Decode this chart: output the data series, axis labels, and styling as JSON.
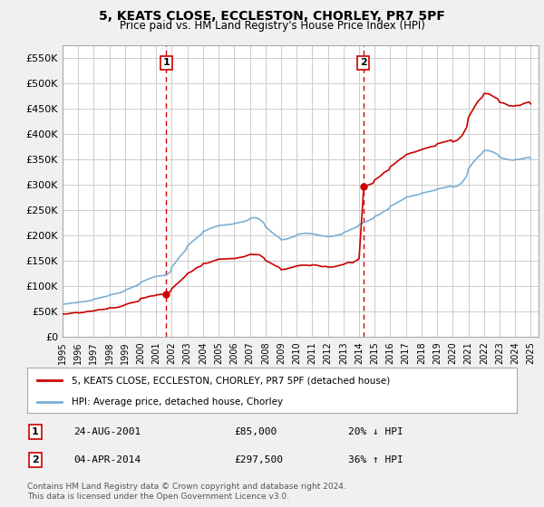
{
  "title": "5, KEATS CLOSE, ECCLESTON, CHORLEY, PR7 5PF",
  "subtitle": "Price paid vs. HM Land Registry's House Price Index (HPI)",
  "ylim": [
    0,
    575000
  ],
  "yticks": [
    0,
    50000,
    100000,
    150000,
    200000,
    250000,
    300000,
    350000,
    400000,
    450000,
    500000,
    550000
  ],
  "ytick_labels": [
    "£0",
    "£50K",
    "£100K",
    "£150K",
    "£200K",
    "£250K",
    "£300K",
    "£350K",
    "£400K",
    "£450K",
    "£500K",
    "£550K"
  ],
  "background_color": "#f0f0f0",
  "plot_bg_color": "#ffffff",
  "grid_color": "#cccccc",
  "hpi_color": "#7bafd4",
  "price_color": "#cc0000",
  "vline_color": "#cc0000",
  "transaction1_x": 2001.65,
  "transaction1_price": 85000,
  "transaction2_x": 2014.26,
  "transaction2_price": 297500,
  "legend_house_label": "5, KEATS CLOSE, ECCLESTON, CHORLEY, PR7 5PF (detached house)",
  "legend_hpi_label": "HPI: Average price, detached house, Chorley",
  "table_rows": [
    {
      "num": "1",
      "date": "24-AUG-2001",
      "price": "£85,000",
      "pct": "20% ↓ HPI"
    },
    {
      "num": "2",
      "date": "04-APR-2014",
      "price": "£297,500",
      "pct": "36% ↑ HPI"
    }
  ],
  "footnote": "Contains HM Land Registry data © Crown copyright and database right 2024.\nThis data is licensed under the Open Government Licence v3.0.",
  "xmin": 1995,
  "xmax": 2025.5,
  "xticks": [
    1995,
    1996,
    1997,
    1998,
    1999,
    2000,
    2001,
    2002,
    2003,
    2004,
    2005,
    2006,
    2007,
    2008,
    2009,
    2010,
    2011,
    2012,
    2013,
    2014,
    2015,
    2016,
    2017,
    2018,
    2019,
    2020,
    2021,
    2022,
    2023,
    2024,
    2025
  ]
}
